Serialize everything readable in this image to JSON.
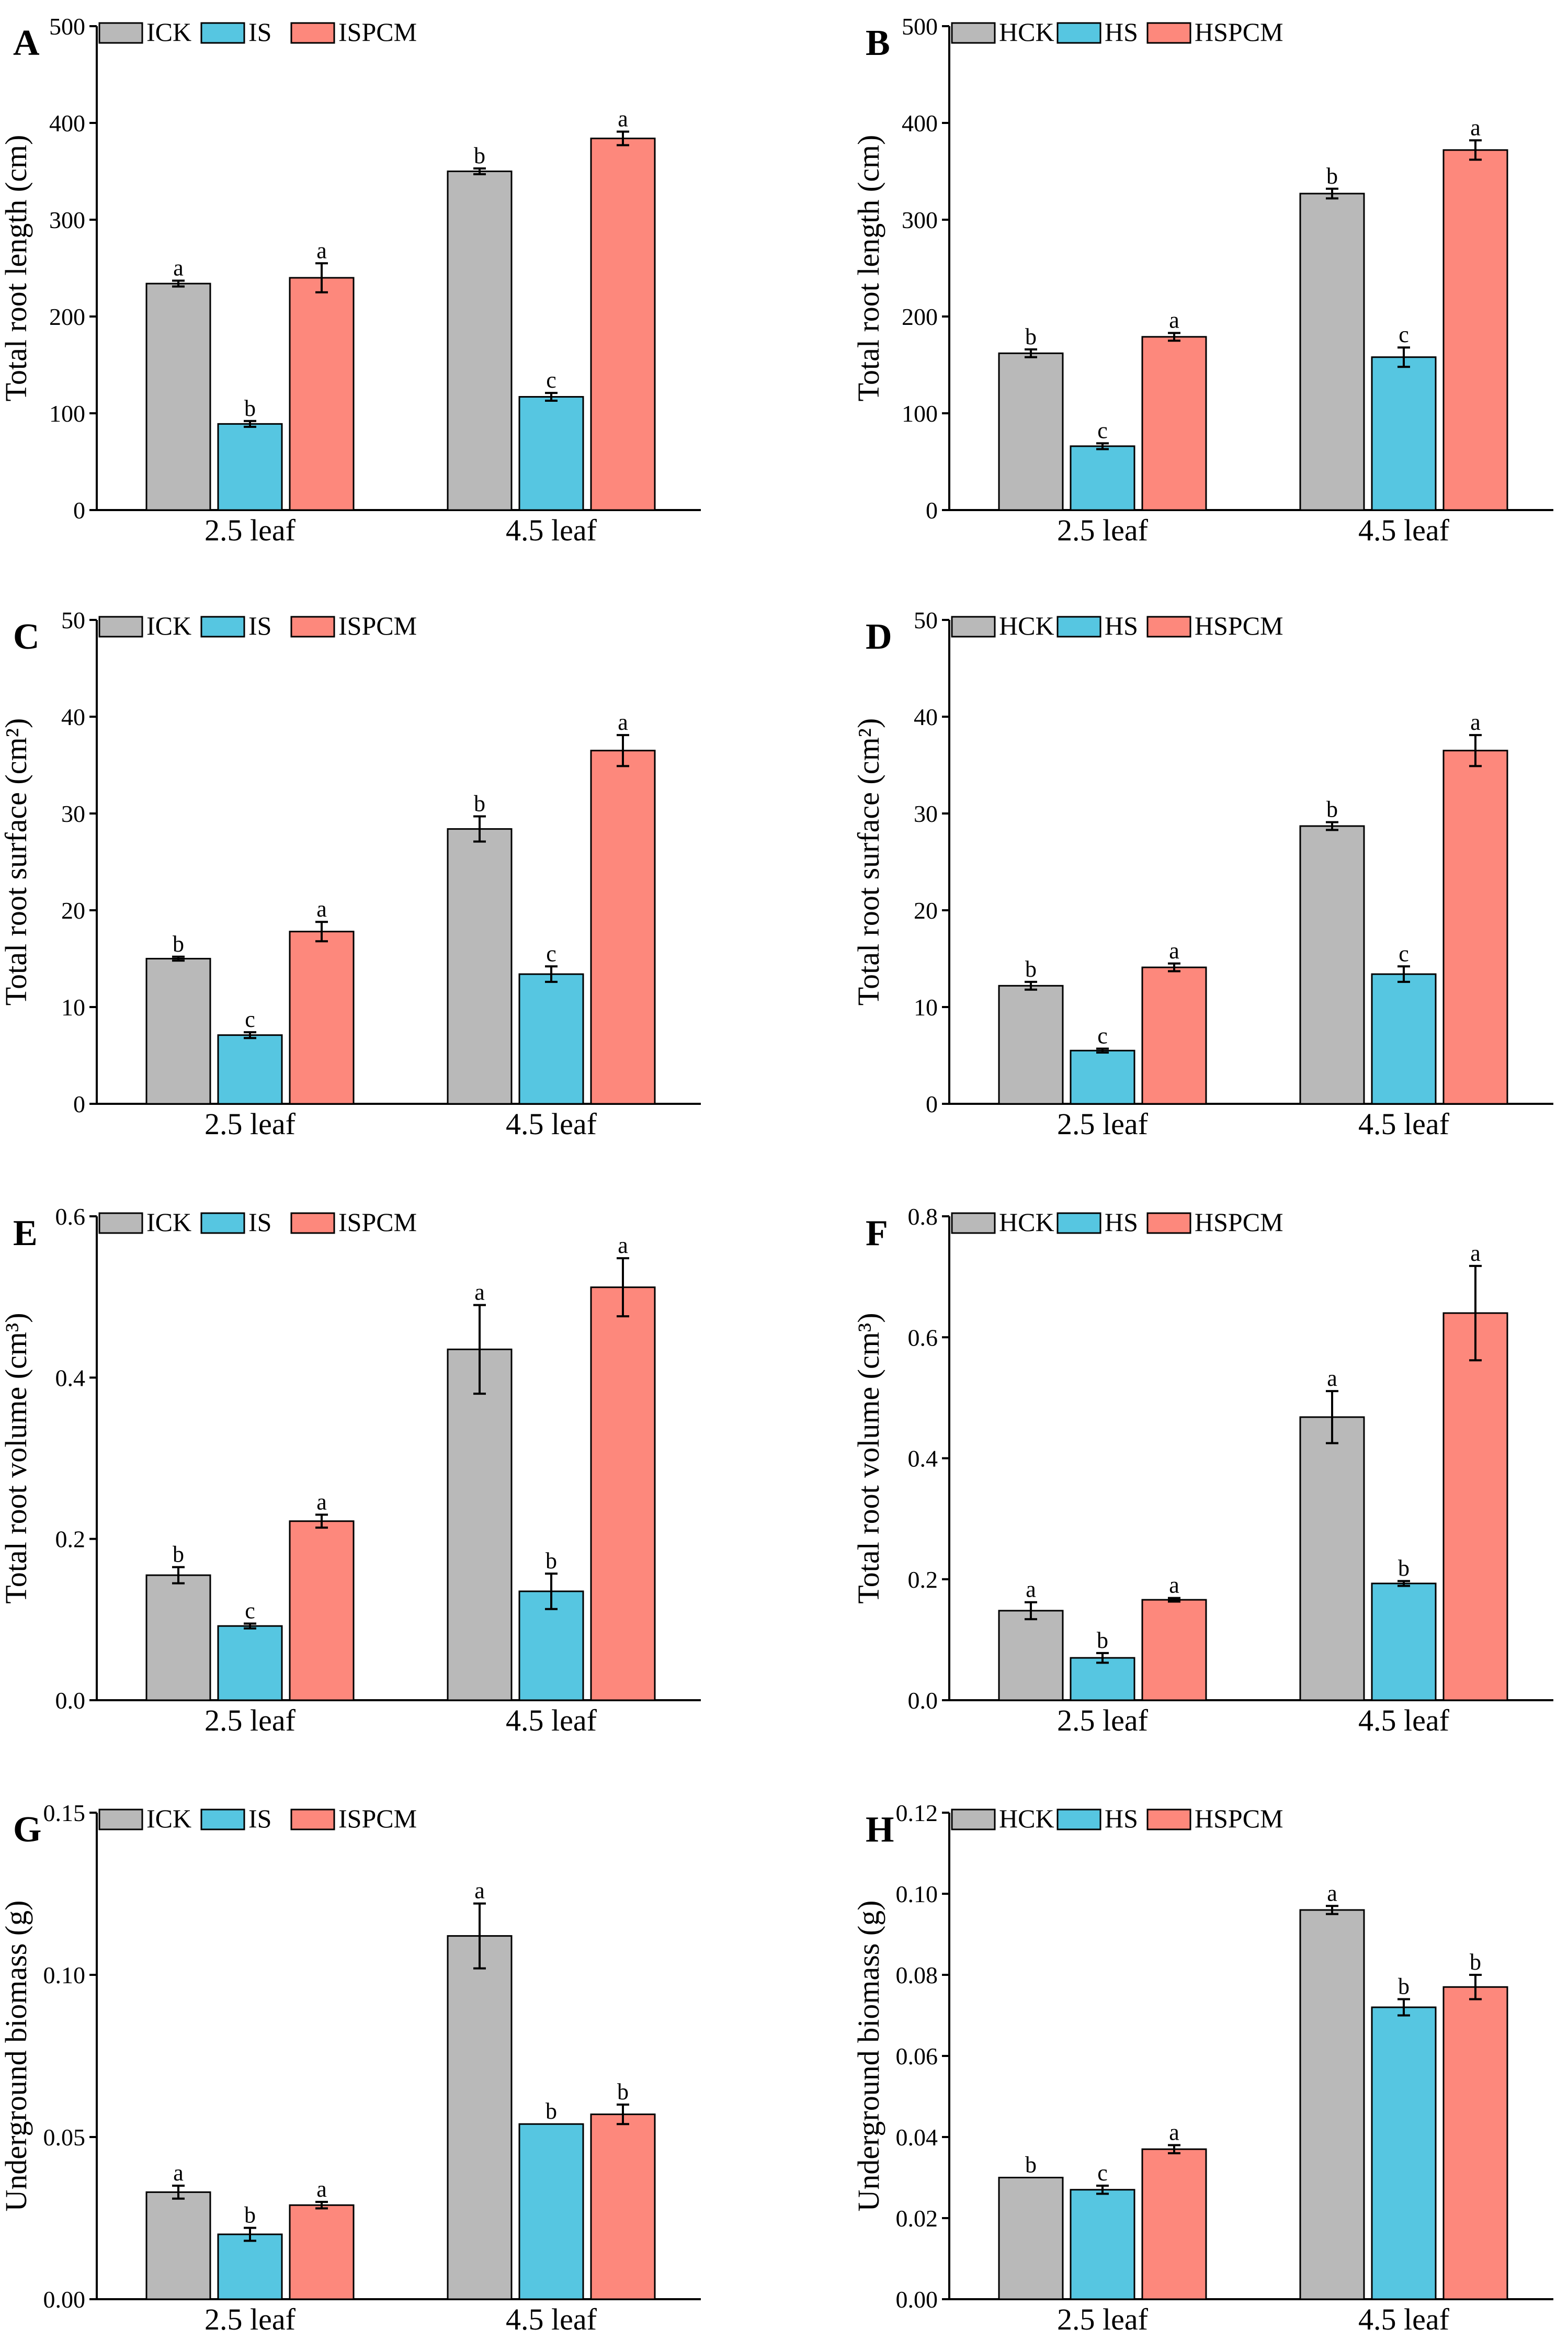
{
  "colors": {
    "gray": "#b9b9b9",
    "blue": "#56c6e1",
    "red": "#fd887c"
  },
  "chart_data": [
    {
      "panel": "A",
      "type": "bar",
      "categories": [
        "2.5 leaf",
        "4.5 leaf"
      ],
      "ylabel": "Total root length (cm)",
      "ylim": [
        0,
        500
      ],
      "yticks": [
        "0",
        "100",
        "200",
        "300",
        "400",
        "500"
      ],
      "legend_position": "top",
      "series": [
        {
          "name": "ICK",
          "color": "#b9b9b9",
          "values": [
            234,
            350
          ],
          "errors": [
            3,
            3
          ],
          "letters": [
            "a",
            "b"
          ]
        },
        {
          "name": "IS",
          "color": "#56c6e1",
          "values": [
            89,
            117
          ],
          "errors": [
            3,
            4
          ],
          "letters": [
            "b",
            "c"
          ]
        },
        {
          "name": "ISPCM",
          "color": "#fd887c",
          "values": [
            240,
            384
          ],
          "errors": [
            15,
            7
          ],
          "letters": [
            "a",
            "a"
          ]
        }
      ]
    },
    {
      "panel": "B",
      "type": "bar",
      "categories": [
        "2.5 leaf",
        "4.5 leaf"
      ],
      "ylabel": "Total root length (cm)",
      "ylim": [
        0,
        500
      ],
      "yticks": [
        "0",
        "100",
        "200",
        "300",
        "400",
        "500"
      ],
      "legend_position": "top",
      "series": [
        {
          "name": "HCK",
          "color": "#b9b9b9",
          "values": [
            162,
            327
          ],
          "errors": [
            4,
            5
          ],
          "letters": [
            "b",
            "b"
          ]
        },
        {
          "name": "HS",
          "color": "#56c6e1",
          "values": [
            66,
            158
          ],
          "errors": [
            3,
            10
          ],
          "letters": [
            "c",
            "c"
          ]
        },
        {
          "name": "HSPCM",
          "color": "#fd887c",
          "values": [
            179,
            372
          ],
          "errors": [
            4,
            10
          ],
          "letters": [
            "a",
            "a"
          ]
        }
      ]
    },
    {
      "panel": "C",
      "type": "bar",
      "categories": [
        "2.5 leaf",
        "4.5 leaf"
      ],
      "ylabel": "Total root surface (cm²)",
      "ylim": [
        0,
        50
      ],
      "yticks": [
        "0",
        "10",
        "20",
        "30",
        "40",
        "50"
      ],
      "legend_position": "top",
      "series": [
        {
          "name": "ICK",
          "color": "#b9b9b9",
          "values": [
            15.0,
            28.4
          ],
          "errors": [
            0.2,
            1.3
          ],
          "letters": [
            "b",
            "b"
          ]
        },
        {
          "name": "IS",
          "color": "#56c6e1",
          "values": [
            7.1,
            13.4
          ],
          "errors": [
            0.3,
            0.8
          ],
          "letters": [
            "c",
            "c"
          ]
        },
        {
          "name": "ISPCM",
          "color": "#fd887c",
          "values": [
            17.8,
            36.5
          ],
          "errors": [
            1.0,
            1.6
          ],
          "letters": [
            "a",
            "a"
          ]
        }
      ]
    },
    {
      "panel": "D",
      "type": "bar",
      "categories": [
        "2.5 leaf",
        "4.5 leaf"
      ],
      "ylabel": "Total root surface (cm²)",
      "ylim": [
        0,
        50
      ],
      "yticks": [
        "0",
        "10",
        "20",
        "30",
        "40",
        "50"
      ],
      "legend_position": "top",
      "series": [
        {
          "name": "HCK",
          "color": "#b9b9b9",
          "values": [
            12.2,
            28.7
          ],
          "errors": [
            0.4,
            0.4
          ],
          "letters": [
            "b",
            "b"
          ]
        },
        {
          "name": "HS",
          "color": "#56c6e1",
          "values": [
            5.5,
            13.4
          ],
          "errors": [
            0.2,
            0.8
          ],
          "letters": [
            "c",
            "c"
          ]
        },
        {
          "name": "HSPCM",
          "color": "#fd887c",
          "values": [
            14.1,
            36.5
          ],
          "errors": [
            0.4,
            1.6
          ],
          "letters": [
            "a",
            "a"
          ]
        }
      ]
    },
    {
      "panel": "E",
      "type": "bar",
      "categories": [
        "2.5 leaf",
        "4.5 leaf"
      ],
      "ylabel": "Total root volume (cm³)",
      "ylim": [
        0,
        0.6
      ],
      "yticks": [
        "0.0",
        "0.2",
        "0.4",
        "0.6"
      ],
      "legend_position": "top",
      "series": [
        {
          "name": "ICK",
          "color": "#b9b9b9",
          "values": [
            0.155,
            0.435
          ],
          "errors": [
            0.01,
            0.055
          ],
          "letters": [
            "b",
            "a"
          ]
        },
        {
          "name": "IS",
          "color": "#56c6e1",
          "values": [
            0.092,
            0.135
          ],
          "errors": [
            0.003,
            0.022
          ],
          "letters": [
            "c",
            "b"
          ]
        },
        {
          "name": "ISPCM",
          "color": "#fd887c",
          "values": [
            0.222,
            0.512
          ],
          "errors": [
            0.008,
            0.036
          ],
          "letters": [
            "a",
            "a"
          ]
        }
      ]
    },
    {
      "panel": "F",
      "type": "bar",
      "categories": [
        "2.5 leaf",
        "4.5 leaf"
      ],
      "ylabel": "Total root volume (cm³)",
      "ylim": [
        0,
        0.8
      ],
      "yticks": [
        "0.0",
        "0.2",
        "0.4",
        "0.6",
        "0.8"
      ],
      "legend_position": "top",
      "series": [
        {
          "name": "HCK",
          "color": "#b9b9b9",
          "values": [
            0.148,
            0.468
          ],
          "errors": [
            0.014,
            0.043
          ],
          "letters": [
            "a",
            "a"
          ]
        },
        {
          "name": "HS",
          "color": "#56c6e1",
          "values": [
            0.07,
            0.193
          ],
          "errors": [
            0.008,
            0.004
          ],
          "letters": [
            "b",
            "b"
          ]
        },
        {
          "name": "HSPCM",
          "color": "#fd887c",
          "values": [
            0.166,
            0.64
          ],
          "errors": [
            0.003,
            0.078
          ],
          "letters": [
            "a",
            "a"
          ]
        }
      ]
    },
    {
      "panel": "G",
      "type": "bar",
      "categories": [
        "2.5 leaf",
        "4.5 leaf"
      ],
      "ylabel": "Underground biomass (g)",
      "ylim": [
        0,
        0.15
      ],
      "yticks": [
        "0.00",
        "0.05",
        "0.10",
        "0.15"
      ],
      "legend_position": "top",
      "series": [
        {
          "name": "ICK",
          "color": "#b9b9b9",
          "values": [
            0.033,
            0.112
          ],
          "errors": [
            0.002,
            0.01
          ],
          "letters": [
            "a",
            "a"
          ]
        },
        {
          "name": "IS",
          "color": "#56c6e1",
          "values": [
            0.02,
            0.054
          ],
          "errors": [
            0.002,
            0.0
          ],
          "letters": [
            "b",
            "b"
          ]
        },
        {
          "name": "ISPCM",
          "color": "#fd887c",
          "values": [
            0.029,
            0.057
          ],
          "errors": [
            0.001,
            0.003
          ],
          "letters": [
            "a",
            "b"
          ]
        }
      ]
    },
    {
      "panel": "H",
      "type": "bar",
      "categories": [
        "2.5 leaf",
        "4.5 leaf"
      ],
      "ylabel": "Underground biomass (g)",
      "ylim": [
        0,
        0.12
      ],
      "yticks": [
        "0.00",
        "0.02",
        "0.04",
        "0.06",
        "0.08",
        "0.10",
        "0.12"
      ],
      "legend_position": "top",
      "series": [
        {
          "name": "HCK",
          "color": "#b9b9b9",
          "values": [
            0.03,
            0.096
          ],
          "errors": [
            0.0,
            0.001
          ],
          "letters": [
            "b",
            "a"
          ]
        },
        {
          "name": "HS",
          "color": "#56c6e1",
          "values": [
            0.027,
            0.072
          ],
          "errors": [
            0.001,
            0.002
          ],
          "letters": [
            "c",
            "b"
          ]
        },
        {
          "name": "HSPCM",
          "color": "#fd887c",
          "values": [
            0.037,
            0.077
          ],
          "errors": [
            0.001,
            0.003
          ],
          "letters": [
            "a",
            "b"
          ]
        }
      ]
    }
  ]
}
